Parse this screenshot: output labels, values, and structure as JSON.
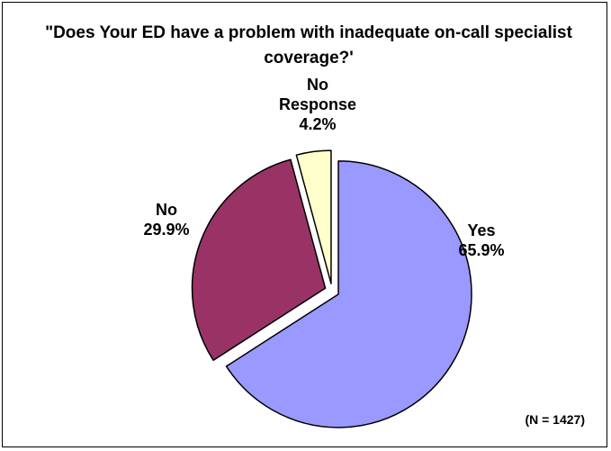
{
  "chart_data": {
    "type": "pie",
    "title": "\"Does Your ED have a problem with inadequate on-call specialist coverage?'",
    "slices": [
      {
        "label": "Yes",
        "value": 65.9,
        "value_label": "65.9%",
        "color": "#9999ff"
      },
      {
        "label": "No",
        "value": 29.9,
        "value_label": "29.9%",
        "color": "#993366"
      },
      {
        "label": "No Response",
        "value": 4.2,
        "value_label": "4.2%",
        "color": "#ffffcc"
      }
    ],
    "exploded": true,
    "legend": "none",
    "note": "(N = 1427)"
  }
}
